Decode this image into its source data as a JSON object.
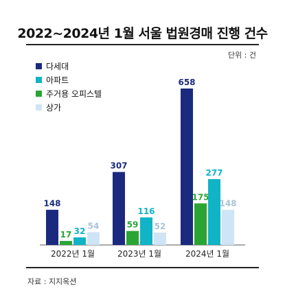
{
  "header": {
    "title": "2022~2024년 1월 서울 법원경매 진행 건수",
    "unit": "단위 : 건"
  },
  "footer": {
    "source": "자료 : 지지옥션"
  },
  "colors": {
    "villa": "#1b2a7e",
    "apartment": "#11b3c6",
    "officetel": "#2aa534",
    "shop": "#cfe4f4"
  },
  "chart_data": {
    "type": "bar",
    "title": "2022~2024년 1월 서울 법원경매 진행 건수",
    "unit": "단위 : 건",
    "categories": [
      "2022년 1월",
      "2023년 1월",
      "2024년 1월"
    ],
    "legend_position": "top-left",
    "grid": false,
    "ylim": [
      0,
      700
    ],
    "series": [
      {
        "name": "다세대",
        "color": "#1b2a7e",
        "label_color": "#1b2a7e",
        "values": [
          148,
          307,
          658
        ]
      },
      {
        "name": "주거용 오피스텔",
        "color": "#2aa534",
        "label_color": "#2aa534",
        "values": [
          17,
          59,
          175
        ]
      },
      {
        "name": "아파트",
        "color": "#11b3c6",
        "label_color": "#11b3c6",
        "values": [
          32,
          116,
          277
        ]
      },
      {
        "name": "상가",
        "color": "#cfe4f4",
        "label_color": "#a9c3d8",
        "values": [
          54,
          52,
          148
        ]
      }
    ],
    "legend_order": [
      "다세대",
      "아파트",
      "주거용 오피스텔",
      "상가"
    ]
  }
}
